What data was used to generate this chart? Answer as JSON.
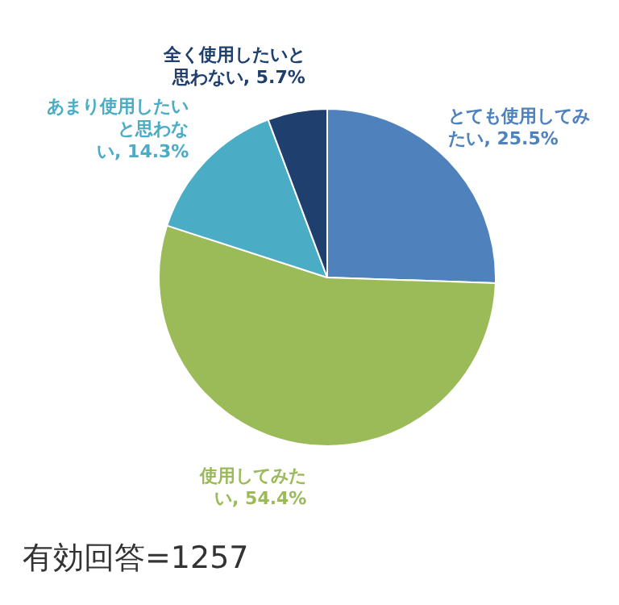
{
  "chart_data": {
    "type": "pie",
    "categories": [
      "とても使用してみたい",
      "使用してみたい",
      "あまり使用したいと思わない",
      "全く使用したいと思わない"
    ],
    "values": [
      25.5,
      54.4,
      14.3,
      5.7
    ],
    "value_labels": [
      "25.5%",
      "54.4%",
      "14.3%",
      "5.7%"
    ],
    "colors": [
      "#4f81bd",
      "#9bbb59",
      "#4bacc6",
      "#1f3f6e"
    ],
    "legend": false,
    "annotations": [
      "有効回答=1257"
    ]
  }
}
